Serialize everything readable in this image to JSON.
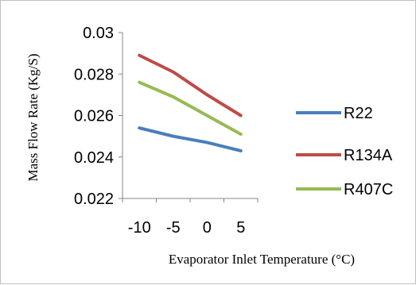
{
  "chart_data": {
    "type": "line",
    "title": "",
    "xlabel": "Evaporator Inlet Temperature (°C)",
    "ylabel": "Mass Flow Rate (Kg/S)",
    "categories": [
      "-10",
      "-5",
      "0",
      "5"
    ],
    "ylim": [
      0.022,
      0.03
    ],
    "yticks": [
      "0.022",
      "0.024",
      "0.026",
      "0.028",
      "0.03"
    ],
    "grid": false,
    "legend": "right",
    "series": [
      {
        "name": "R22",
        "color": "#4a7ebb",
        "values": [
          0.0254,
          0.025,
          0.0247,
          0.0243
        ]
      },
      {
        "name": "R134A",
        "color": "#be4b48",
        "values": [
          0.0289,
          0.0281,
          0.027,
          0.026
        ]
      },
      {
        "name": "R407C",
        "color": "#98b954",
        "values": [
          0.0276,
          0.0269,
          0.026,
          0.0251
        ]
      }
    ]
  }
}
